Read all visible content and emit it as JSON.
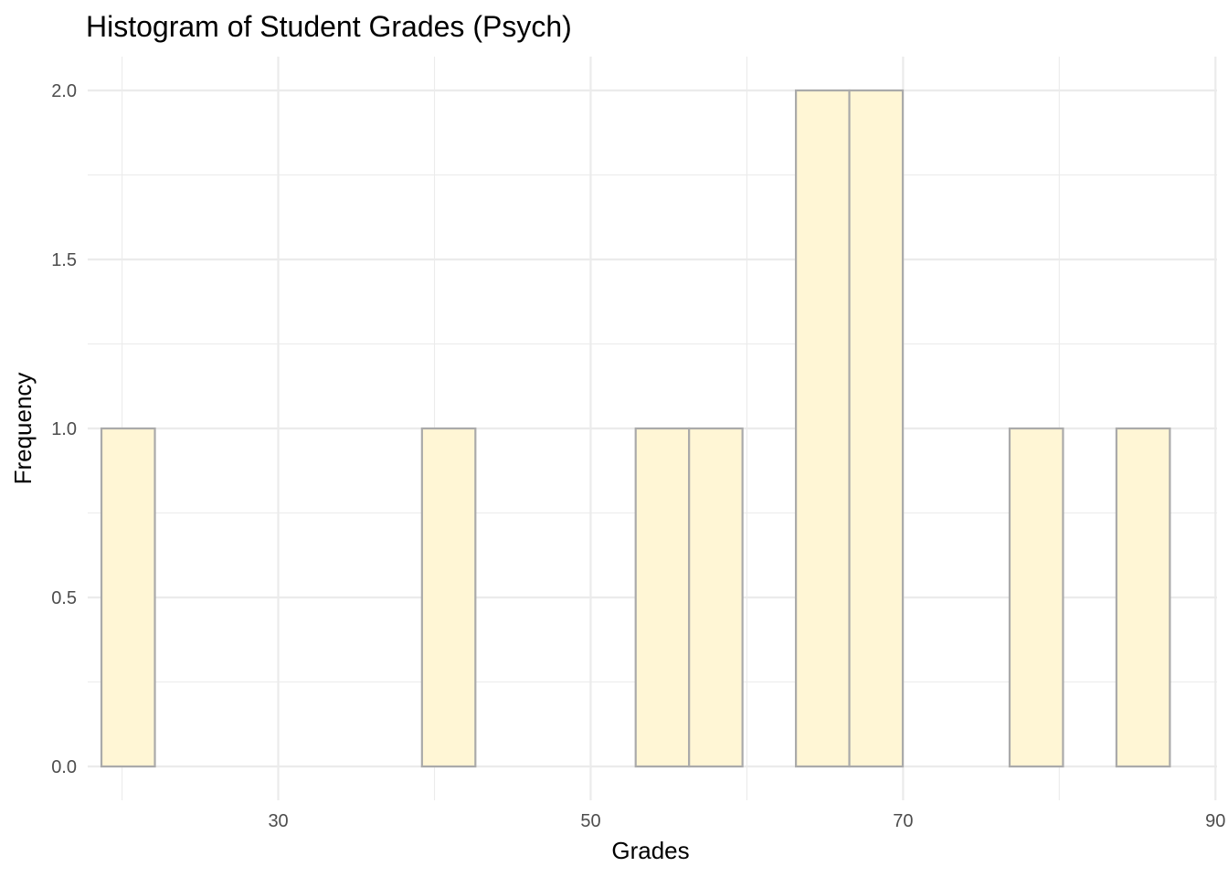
{
  "chart_data": {
    "type": "bar",
    "title": "Histogram of Student Grades (Psych)",
    "xlabel": "Grades",
    "ylabel": "Frequency",
    "xlim": [
      17.8,
      90.1
    ],
    "ylim": [
      -0.1,
      2.1
    ],
    "x_ticks": [
      30,
      50,
      70,
      90
    ],
    "y_ticks": [
      0.0,
      0.5,
      1.0,
      1.5,
      2.0
    ],
    "x_tick_labels": [
      "30",
      "50",
      "70",
      "90"
    ],
    "y_tick_labels": [
      "0.0",
      "0.5",
      "1.0",
      "1.5",
      "2.0"
    ],
    "bin_width": 3.42,
    "bins": [
      {
        "start": 18.68,
        "end": 22.1,
        "count": 1
      },
      {
        "start": 22.1,
        "end": 25.52,
        "count": 0
      },
      {
        "start": 25.52,
        "end": 28.94,
        "count": 0
      },
      {
        "start": 28.94,
        "end": 32.36,
        "count": 0
      },
      {
        "start": 32.36,
        "end": 35.78,
        "count": 0
      },
      {
        "start": 35.78,
        "end": 39.2,
        "count": 0
      },
      {
        "start": 39.2,
        "end": 42.62,
        "count": 1
      },
      {
        "start": 42.62,
        "end": 46.04,
        "count": 0
      },
      {
        "start": 46.04,
        "end": 49.46,
        "count": 0
      },
      {
        "start": 49.46,
        "end": 52.88,
        "count": 0
      },
      {
        "start": 52.88,
        "end": 56.3,
        "count": 1
      },
      {
        "start": 56.3,
        "end": 59.72,
        "count": 1
      },
      {
        "start": 59.72,
        "end": 63.14,
        "count": 0
      },
      {
        "start": 63.14,
        "end": 66.56,
        "count": 2
      },
      {
        "start": 66.56,
        "end": 69.98,
        "count": 2
      },
      {
        "start": 69.98,
        "end": 73.4,
        "count": 0
      },
      {
        "start": 73.4,
        "end": 76.82,
        "count": 0
      },
      {
        "start": 76.82,
        "end": 80.24,
        "count": 1
      },
      {
        "start": 80.24,
        "end": 83.66,
        "count": 0
      },
      {
        "start": 83.66,
        "end": 87.08,
        "count": 1
      }
    ],
    "grid": true,
    "legend": "none",
    "bar_fill": "#FFF6D5",
    "bar_stroke": "#AAAAAA",
    "grid_color": "#EBEBEB"
  }
}
